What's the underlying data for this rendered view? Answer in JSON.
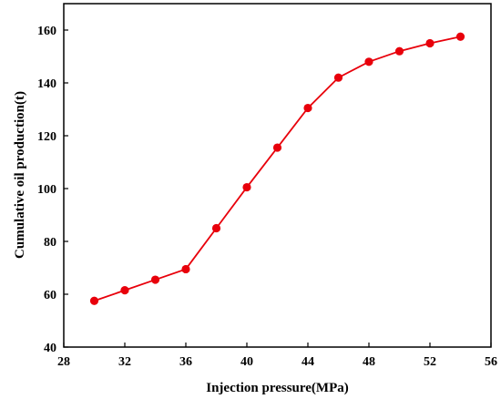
{
  "chart_data": {
    "type": "line",
    "title": "",
    "xlabel": "Injection pressure(MPa)",
    "ylabel": "Cumulative oil production(t)",
    "xlim": [
      28,
      56
    ],
    "ylim": [
      40,
      170
    ],
    "xticks": [
      28,
      32,
      36,
      40,
      44,
      48,
      52,
      56
    ],
    "yticks": [
      40,
      60,
      80,
      100,
      120,
      140,
      160
    ],
    "grid": false,
    "legend": "none",
    "series": [
      {
        "color": "#e8000b",
        "marker": "circle",
        "x": [
          30,
          32,
          34,
          36,
          38,
          40,
          42,
          44,
          46,
          48,
          50,
          52,
          54
        ],
        "y": [
          57.5,
          61.5,
          65.5,
          69.5,
          85,
          100.5,
          115.5,
          130.5,
          142,
          148,
          152,
          155,
          157.5
        ]
      }
    ]
  }
}
